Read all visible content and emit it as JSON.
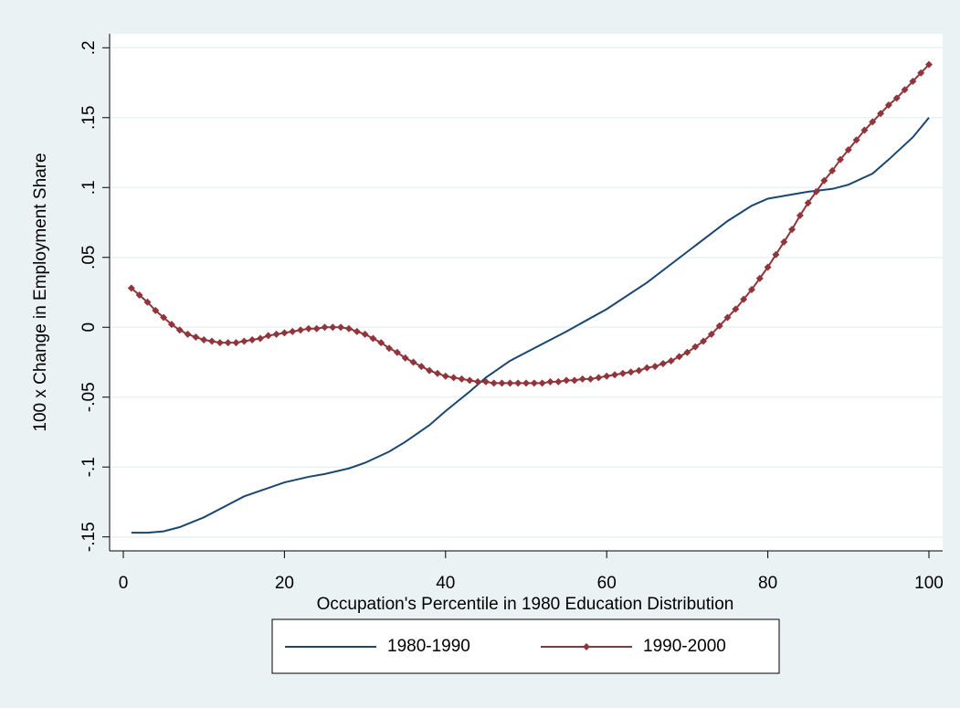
{
  "chart_data": {
    "type": "line",
    "xlabel": "Occupation's Percentile in 1980 Education Distribution",
    "ylabel": "100 x Change in Employment Share",
    "xlim": [
      -1.7,
      101.7
    ],
    "ylim": [
      -0.16,
      0.21
    ],
    "xticks": [
      0,
      20,
      40,
      60,
      80,
      100
    ],
    "yticks": [
      {
        "value": -0.15,
        "label": "-.15"
      },
      {
        "value": -0.1,
        "label": "-.1"
      },
      {
        "value": -0.05,
        "label": "-.05"
      },
      0,
      {
        "value": 0.05,
        "label": ".05"
      },
      {
        "value": 0.1,
        "label": ".1"
      },
      {
        "value": 0.15,
        "label": ".15"
      },
      {
        "value": 0.2,
        "label": ".2"
      }
    ],
    "grid": true,
    "legend": "bottom",
    "series": [
      {
        "name": "1980-1990",
        "color": "#1a476f",
        "marker": false,
        "x": [
          1,
          3,
          5,
          7,
          10,
          12,
          15,
          18,
          20,
          23,
          25,
          28,
          30,
          33,
          35,
          38,
          40,
          43,
          45,
          48,
          50,
          55,
          60,
          65,
          70,
          75,
          78,
          80,
          83,
          85,
          88,
          90,
          93,
          95,
          98,
          100
        ],
        "values": [
          -0.147,
          -0.147,
          -0.146,
          -0.143,
          -0.136,
          -0.13,
          -0.121,
          -0.115,
          -0.111,
          -0.107,
          -0.105,
          -0.101,
          -0.097,
          -0.089,
          -0.082,
          -0.07,
          -0.06,
          -0.046,
          -0.036,
          -0.024,
          -0.018,
          -0.003,
          0.013,
          0.032,
          0.054,
          0.076,
          0.087,
          0.092,
          0.095,
          0.097,
          0.099,
          0.102,
          0.11,
          0.12,
          0.136,
          0.15
        ]
      },
      {
        "name": "1990-2000",
        "color": "#90353b",
        "marker": true,
        "x": [
          1,
          2,
          3,
          4,
          5,
          6,
          7,
          8,
          9,
          10,
          11,
          12,
          13,
          14,
          15,
          16,
          17,
          18,
          19,
          20,
          21,
          22,
          23,
          24,
          25,
          26,
          27,
          28,
          29,
          30,
          31,
          32,
          33,
          34,
          35,
          36,
          37,
          38,
          39,
          40,
          41,
          42,
          43,
          44,
          45,
          46,
          47,
          48,
          49,
          50,
          51,
          52,
          53,
          54,
          55,
          56,
          57,
          58,
          59,
          60,
          61,
          62,
          63,
          64,
          65,
          66,
          67,
          68,
          69,
          70,
          71,
          72,
          73,
          74,
          75,
          76,
          77,
          78,
          79,
          80,
          81,
          82,
          83,
          84,
          85,
          86,
          87,
          88,
          89,
          90,
          91,
          92,
          93,
          94,
          95,
          96,
          97,
          98,
          99,
          100
        ],
        "values": [
          0.028,
          0.023,
          0.018,
          0.012,
          0.007,
          0.002,
          -0.002,
          -0.005,
          -0.007,
          -0.009,
          -0.01,
          -0.011,
          -0.011,
          -0.011,
          -0.01,
          -0.009,
          -0.008,
          -0.006,
          -0.005,
          -0.004,
          -0.003,
          -0.002,
          -0.001,
          -0.001,
          0,
          0,
          0,
          -0.001,
          -0.003,
          -0.005,
          -0.008,
          -0.011,
          -0.015,
          -0.018,
          -0.022,
          -0.025,
          -0.028,
          -0.031,
          -0.033,
          -0.035,
          -0.036,
          -0.037,
          -0.038,
          -0.039,
          -0.039,
          -0.04,
          -0.04,
          -0.04,
          -0.04,
          -0.04,
          -0.04,
          -0.04,
          -0.039,
          -0.039,
          -0.038,
          -0.038,
          -0.037,
          -0.037,
          -0.036,
          -0.035,
          -0.034,
          -0.033,
          -0.032,
          -0.031,
          -0.029,
          -0.028,
          -0.026,
          -0.024,
          -0.021,
          -0.018,
          -0.014,
          -0.01,
          -0.005,
          0.001,
          0.007,
          0.013,
          0.02,
          0.027,
          0.035,
          0.043,
          0.052,
          0.061,
          0.07,
          0.08,
          0.089,
          0.097,
          0.105,
          0.112,
          0.12,
          0.127,
          0.134,
          0.141,
          0.147,
          0.153,
          0.159,
          0.164,
          0.17,
          0.176,
          0.182,
          0.188
        ]
      }
    ]
  }
}
